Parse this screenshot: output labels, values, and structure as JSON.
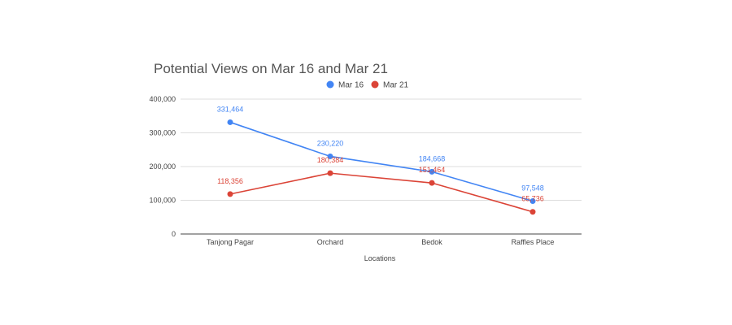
{
  "chart_data": {
    "type": "line",
    "title": "Potential Views on Mar 16 and Mar 21",
    "xlabel": "Locations",
    "ylabel": "",
    "categories": [
      "Tanjong Pagar",
      "Orchard",
      "Bedok",
      "Raffles Place"
    ],
    "ylim": [
      0,
      400000
    ],
    "yticks": [
      0,
      100000,
      200000,
      300000,
      400000
    ],
    "ytick_labels": [
      "0",
      "100,000",
      "200,000",
      "300,000",
      "400,000"
    ],
    "grid": true,
    "legend_position": "top",
    "series": [
      {
        "name": "Mar 16",
        "color": "#4285f4",
        "values": [
          331464,
          230220,
          184668,
          97548
        ],
        "labels": [
          "331,464",
          "230,220",
          "184,668",
          "97,548"
        ]
      },
      {
        "name": "Mar 21",
        "color": "#db4437",
        "values": [
          118356,
          180384,
          151464,
          65736
        ],
        "labels": [
          "118,356",
          "180,384",
          "151,464",
          "65,736"
        ]
      }
    ]
  }
}
